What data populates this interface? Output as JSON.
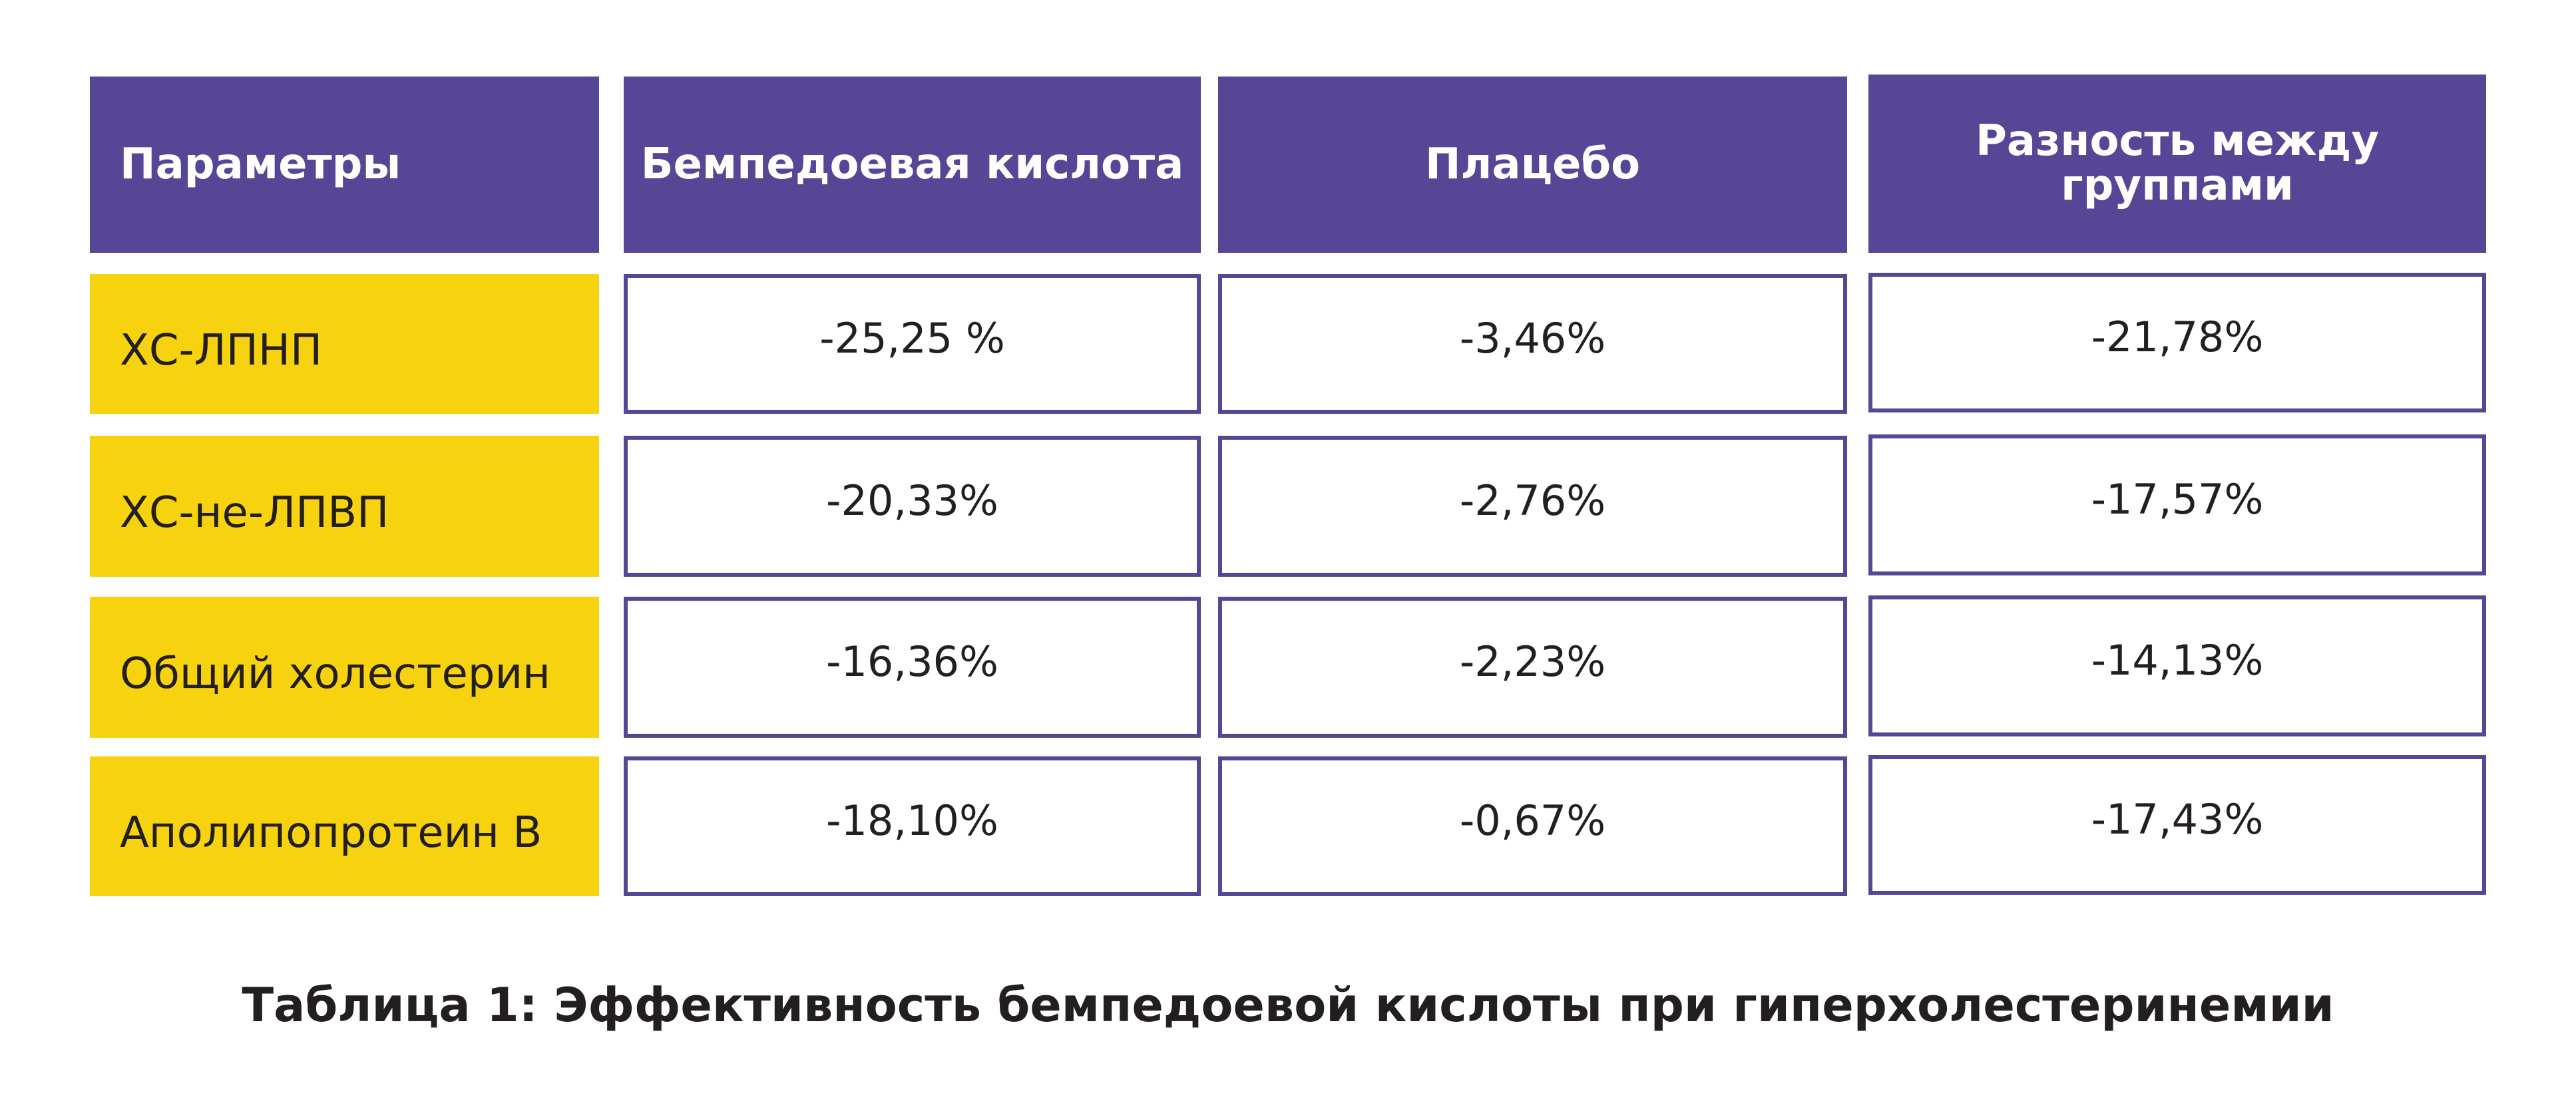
{
  "table": {
    "headers": [
      "Параметры",
      "Бемпедоевая кислота",
      "Плацебо",
      "Разность между группами"
    ],
    "rows": [
      {
        "param": "ХС-ЛПНП",
        "bempedoic": "-25,25 %",
        "placebo": "-3,46%",
        "difference": "-21,78%"
      },
      {
        "param": "ХС-не-ЛПВП",
        "bempedoic": "-20,33%",
        "placebo": "-2,76%",
        "difference": "-17,57%"
      },
      {
        "param": "Общий холестерин",
        "bempedoic": "-16,36%",
        "placebo": "-2,23%",
        "difference": "-14,13%"
      },
      {
        "param": "Аполипопротеин В",
        "bempedoic": "-18,10%",
        "placebo": "-0,67%",
        "difference": "-17,43%"
      }
    ]
  },
  "caption": "Таблица 1: Эффективность бемпедоевой кислоты при гиперхолестеринемии",
  "colors": {
    "header_bg": "#574596",
    "header_text": "#ffffff",
    "param_bg": "#f7d30f",
    "border": "#574596",
    "text": "#231f20"
  }
}
